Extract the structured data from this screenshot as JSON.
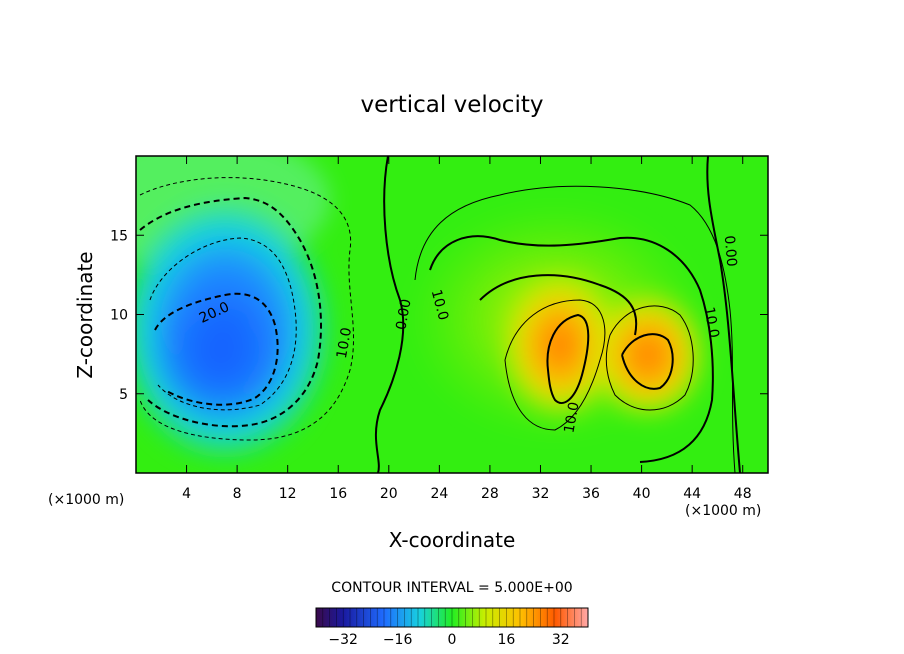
{
  "chart_data": {
    "type": "heatmap",
    "title": "vertical velocity",
    "xlabel": "X-coordinate",
    "ylabel": "Z-coordinate",
    "x_unit": "(×1000 m)",
    "z_unit": "(×1000 m)",
    "xlim": [
      0,
      50
    ],
    "ylim": [
      0,
      20
    ],
    "x_ticks": [
      4,
      8,
      12,
      16,
      20,
      24,
      28,
      32,
      36,
      40,
      44,
      48
    ],
    "y_ticks": [
      5,
      10,
      15
    ],
    "contour_interval_text": "CONTOUR INTERVAL = 5.000E+00",
    "colorbar": {
      "ticks": [
        -32,
        -16,
        0,
        16,
        32
      ],
      "tick_labels": [
        "−32",
        "−16",
        "0",
        "16",
        "32"
      ],
      "range": [
        -40,
        40
      ]
    },
    "contour_labels": [
      {
        "text": "20.0",
        "x": 6.2,
        "z": 10.1,
        "angle": -25
      },
      {
        "text": "10.0",
        "x": 16.5,
        "z": 8.2,
        "angle": -80
      },
      {
        "text": "0.00",
        "x": 21.2,
        "z": 10.0,
        "angle": -80
      },
      {
        "text": "10.0",
        "x": 24.0,
        "z": 10.6,
        "angle": 75
      },
      {
        "text": "10.0",
        "x": 34.5,
        "z": 3.5,
        "angle": -80
      },
      {
        "text": "10.0",
        "x": 45.5,
        "z": 9.5,
        "angle": 80
      },
      {
        "text": "0.00",
        "x": 47.0,
        "z": 14.0,
        "angle": 85
      }
    ],
    "field_features": [
      {
        "kind": "downdraft",
        "center_x": 7.5,
        "center_z": 8.0,
        "peak": -25
      },
      {
        "kind": "updraft",
        "center_x": 34.0,
        "center_z": 8.0,
        "peak": 20
      },
      {
        "kind": "updraft",
        "center_x": 41.0,
        "center_z": 7.0,
        "peak": 21
      }
    ]
  },
  "colors": {
    "background": "#ffffff",
    "frame": "#000000",
    "field_zero": "#33ee11"
  }
}
